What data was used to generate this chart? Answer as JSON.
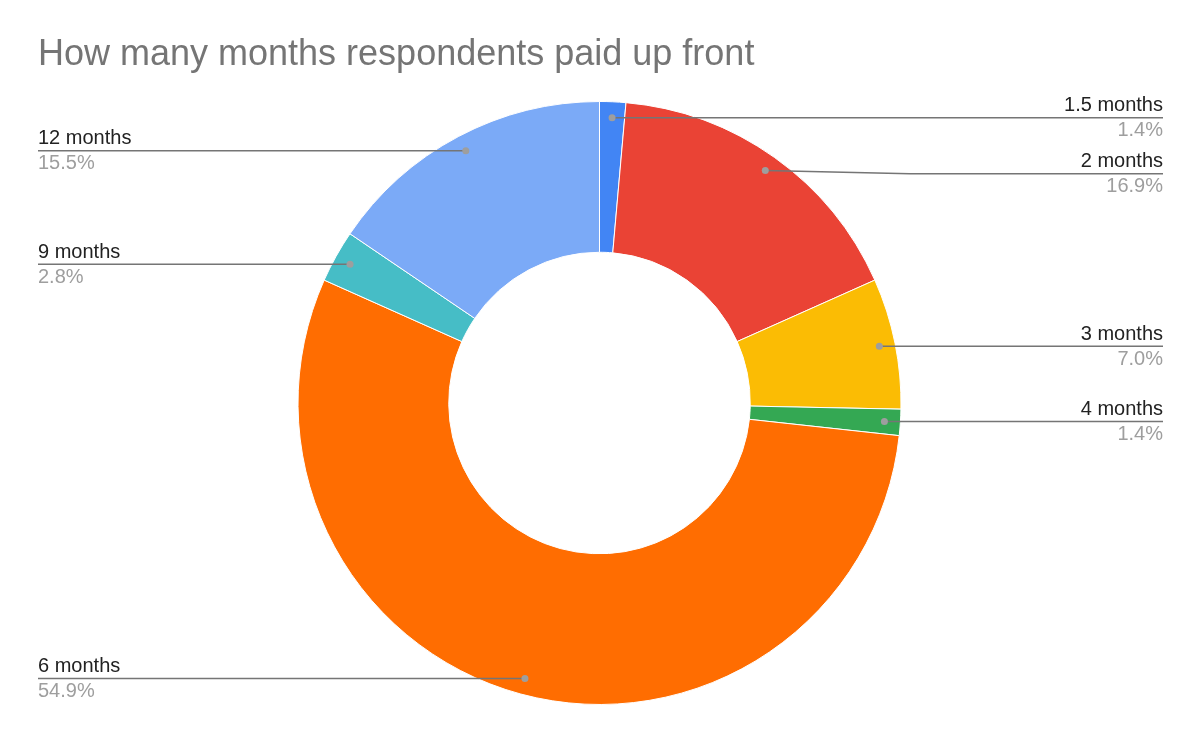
{
  "chart_data": {
    "type": "donut",
    "title": "How many months respondents paid up front",
    "categories": [
      "1.5 months",
      "2 months",
      "3 months",
      "4 months",
      "6 months",
      "9 months",
      "12 months"
    ],
    "values": [
      1.4,
      16.9,
      7.0,
      1.4,
      54.9,
      2.8,
      15.5
    ],
    "value_labels": [
      "1.4%",
      "16.9%",
      "7.0%",
      "1.4%",
      "54.9%",
      "2.8%",
      "15.5%"
    ],
    "colors": [
      "#4285f4",
      "#ea4335",
      "#fbbc04",
      "#34a853",
      "#ff6d01",
      "#46bdc6",
      "#7baaf7"
    ],
    "legend": false
  }
}
